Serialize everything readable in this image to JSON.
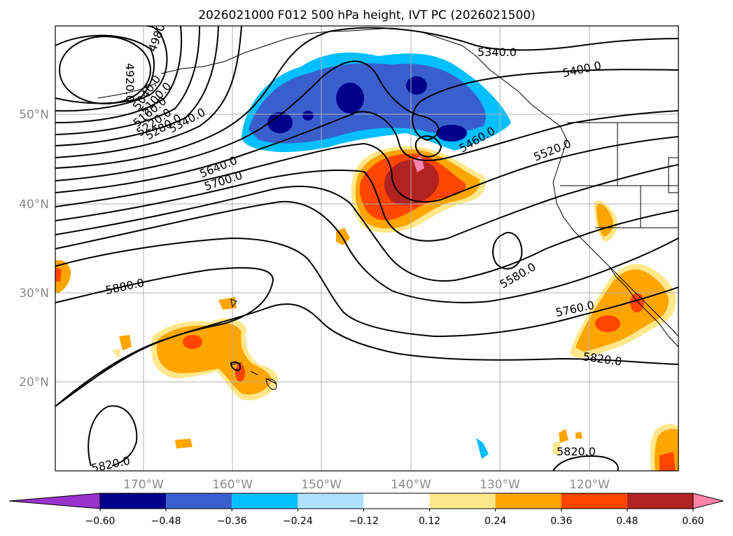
{
  "title": "2026021000 F012 500 hPa height, IVT PC (2026021500)",
  "lat_labels": [
    "20°N",
    "30°N",
    "40°N",
    "50°N"
  ],
  "lon_labels": [
    "170°W",
    "160°W",
    "150°W",
    "140°W",
    "130°W",
    "120°W"
  ],
  "colorbar": {
    "ticks": [
      "−0.60",
      "−0.48",
      "−0.36",
      "−0.24",
      "−0.12",
      "0.12",
      "0.24",
      "0.36",
      "0.48",
      "0.60"
    ],
    "colors": [
      "#9932cc",
      "#00008b",
      "#3a5fcd",
      "#00bfff",
      "#b0e2ff",
      "#ffffff",
      "#ffe88c",
      "#ffa500",
      "#ff4500",
      "#b22222",
      "#ff82ab"
    ]
  },
  "contour_labels": [
    "4920.0",
    "4980.0",
    "5040.0",
    "5100.0",
    "5160.0",
    "5220.0",
    "5280.0",
    "5340.0",
    "5340.0",
    "5400.0",
    "5460.0",
    "5520.0",
    "5580.0",
    "5640.0",
    "5700.0",
    "5760.0",
    "5820.0",
    "5820.0",
    "5820.0",
    "5880.0"
  ]
}
